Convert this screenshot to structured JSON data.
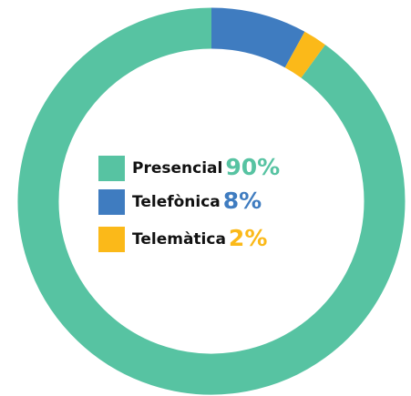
{
  "chart_data": {
    "type": "donut",
    "categories": [
      "Presencial",
      "Telefònica",
      "Telemàtica"
    ],
    "values": [
      90,
      8,
      2
    ],
    "value_labels": [
      "90%",
      "8%",
      "2%"
    ],
    "colors": [
      "#57c3a2",
      "#3f7cc0",
      "#fbb919"
    ],
    "legend": "center"
  }
}
